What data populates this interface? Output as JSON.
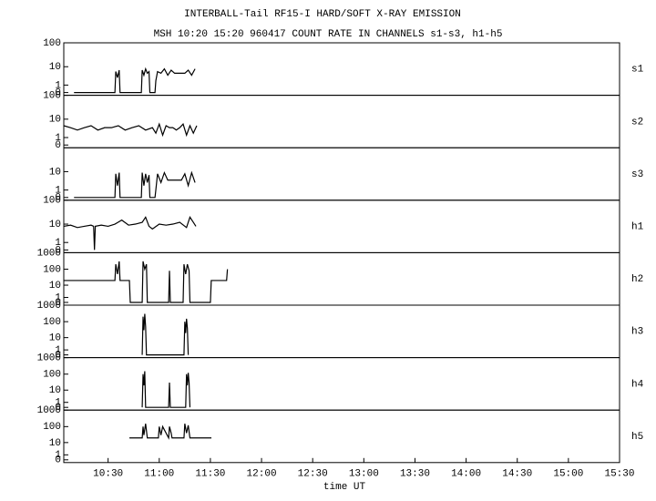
{
  "chart_data": [
    {
      "type": "line",
      "title": "INTERBALL-Tail RF15-I HARD/SOFT X-RAY EMISSION",
      "subtitle": "MSH 10:20 15:20 960417  COUNT RATE IN CHANNELS s1-s3, h1-h5",
      "yscale": "log",
      "xlim": [
        604,
        930
      ],
      "ylim": [
        0,
        100
      ],
      "yticks": [
        0,
        1,
        10,
        100
      ],
      "x": [
        610,
        634,
        634.5,
        635.5,
        636.5,
        637,
        649.5,
        650,
        651,
        652,
        653,
        654,
        654.5,
        657.5,
        658,
        659,
        661,
        663,
        665,
        667,
        669,
        671,
        673,
        675,
        677,
        679,
        681
      ],
      "series": [
        {
          "name": "s1",
          "color": "#000000",
          "values": [
            0,
            0,
            6,
            3,
            7,
            0,
            0,
            7,
            4,
            8,
            5,
            6,
            0,
            0,
            2,
            6,
            5,
            8,
            4,
            7,
            5,
            5,
            5,
            5,
            7,
            4,
            8
          ]
        }
      ]
    },
    {
      "type": "line",
      "yscale": "log",
      "xlim": [
        604,
        930
      ],
      "ylim": [
        0,
        100
      ],
      "yticks": [
        0,
        1,
        10,
        100
      ],
      "x": [
        604,
        608,
        612,
        616,
        620,
        624,
        628,
        632,
        636,
        640,
        644,
        648,
        652,
        656,
        658,
        660,
        662,
        664,
        666,
        668,
        670,
        672,
        674,
        676,
        678,
        680,
        682
      ],
      "series": [
        {
          "name": "s2",
          "color": "#000000",
          "values": [
            5,
            4,
            3,
            4,
            5,
            3,
            4,
            4,
            5,
            3,
            4,
            5,
            3,
            4,
            2,
            6,
            1.5,
            5,
            4,
            4,
            3,
            4,
            6,
            1.5,
            5,
            2,
            5
          ]
        }
      ]
    },
    {
      "type": "line",
      "yscale": "log",
      "xlim": [
        604,
        930
      ],
      "ylim": [
        0,
        100
      ],
      "yticks": [
        0,
        1,
        10
      ],
      "x": [
        610,
        634,
        634.5,
        635.5,
        636.5,
        637,
        649.5,
        650,
        651,
        652,
        653,
        654,
        654.5,
        657.5,
        658,
        659,
        661,
        663,
        665,
        667,
        669,
        671,
        673,
        675,
        677,
        679,
        681
      ],
      "series": [
        {
          "name": "s3",
          "color": "#000000",
          "values": [
            0,
            0,
            8,
            2,
            9,
            0,
            0,
            9,
            2,
            8,
            3,
            7,
            0,
            0,
            1,
            8,
            3,
            9,
            4,
            4,
            4,
            4,
            4,
            8,
            2,
            9,
            3
          ]
        }
      ]
    },
    {
      "type": "line",
      "yscale": "log",
      "xlim": [
        604,
        930
      ],
      "ylim": [
        0,
        100
      ],
      "yticks": [
        0,
        1,
        10,
        100
      ],
      "x": [
        604,
        608,
        612,
        616,
        620,
        621.5,
        622,
        622.5,
        626,
        630,
        634,
        638,
        642,
        646,
        650,
        652,
        654,
        656,
        660,
        664,
        668,
        672,
        676,
        678,
        680,
        681.5
      ],
      "series": [
        {
          "name": "h1",
          "color": "#000000",
          "values": [
            8,
            9,
            7,
            8,
            9,
            8,
            0,
            8,
            9,
            8,
            10,
            15,
            9,
            10,
            12,
            20,
            8,
            6,
            10,
            9,
            10,
            12,
            7,
            20,
            12,
            8
          ]
        }
      ]
    },
    {
      "type": "line",
      "yscale": "log",
      "xlim": [
        604,
        930
      ],
      "ylim": [
        0,
        1000
      ],
      "yticks": [
        0,
        1,
        10,
        100,
        1000
      ],
      "x": [
        604,
        634,
        634.5,
        635.5,
        636.5,
        637,
        642.5,
        643,
        650,
        650.5,
        651.5,
        652.5,
        653,
        665.5,
        666,
        666.5,
        674,
        674.5,
        675.5,
        676.5,
        677.5,
        678,
        690,
        690.5,
        699.5,
        700
      ],
      "series": [
        {
          "name": "h2",
          "color": "#000000",
          "values": [
            20,
            20,
            200,
            50,
            300,
            20,
            20,
            0,
            0,
            300,
            100,
            200,
            0,
            0,
            80,
            0,
            0,
            200,
            50,
            200,
            80,
            0,
            0,
            20,
            20,
            100
          ]
        }
      ]
    },
    {
      "type": "line",
      "yscale": "log",
      "xlim": [
        604,
        930
      ],
      "ylim": [
        0,
        1000
      ],
      "yticks": [
        0,
        1,
        10,
        100,
        1000
      ],
      "x": [
        650,
        650.5,
        651,
        651.5,
        652,
        652.5,
        674.5,
        675,
        675.5,
        676,
        676.5,
        677
      ],
      "series": [
        {
          "name": "h3",
          "color": "#000000",
          "values": [
            0,
            200,
            30,
            300,
            50,
            0,
            0,
            100,
            20,
            150,
            40,
            0
          ]
        }
      ]
    },
    {
      "type": "line",
      "yscale": "log",
      "xlim": [
        604,
        930
      ],
      "ylim": [
        0,
        1000
      ],
      "yticks": [
        0,
        1,
        10,
        100,
        1000
      ],
      "x": [
        650,
        650.5,
        651,
        651.5,
        652,
        665.5,
        666,
        666.5,
        675.5,
        676,
        676.5,
        677,
        677.5,
        678
      ],
      "series": [
        {
          "name": "h4",
          "color": "#000000",
          "values": [
            0,
            100,
            20,
            150,
            0,
            0,
            30,
            0,
            0,
            100,
            20,
            120,
            30,
            0
          ]
        }
      ]
    },
    {
      "type": "line",
      "yscale": "log",
      "xlim": [
        604,
        930
      ],
      "ylim": [
        0,
        1000
      ],
      "yticks": [
        0,
        1,
        10,
        100,
        1000
      ],
      "xticks": [
        {
          "value": 630,
          "label": "10:30"
        },
        {
          "value": 660,
          "label": "11:00"
        },
        {
          "value": 690,
          "label": "11:30"
        },
        {
          "value": 720,
          "label": "12:00"
        },
        {
          "value": 750,
          "label": "12:30"
        },
        {
          "value": 780,
          "label": "13:00"
        },
        {
          "value": 810,
          "label": "13:30"
        },
        {
          "value": 840,
          "label": "14:00"
        },
        {
          "value": 870,
          "label": "14:30"
        },
        {
          "value": 900,
          "label": "15:00"
        },
        {
          "value": 930,
          "label": "15:30"
        }
      ],
      "xlabel": "time UT",
      "x": [
        642.5,
        650,
        650.5,
        651,
        652,
        653,
        659.5,
        660,
        661,
        662,
        665.5,
        666,
        667,
        667.5,
        674.5,
        675,
        676,
        677,
        678,
        690.6
      ],
      "series": [
        {
          "name": "h5",
          "color": "#000000",
          "values": [
            20,
            20,
            100,
            30,
            150,
            20,
            20,
            100,
            30,
            100,
            20,
            100,
            40,
            20,
            20,
            150,
            40,
            120,
            20,
            20
          ]
        }
      ]
    }
  ]
}
